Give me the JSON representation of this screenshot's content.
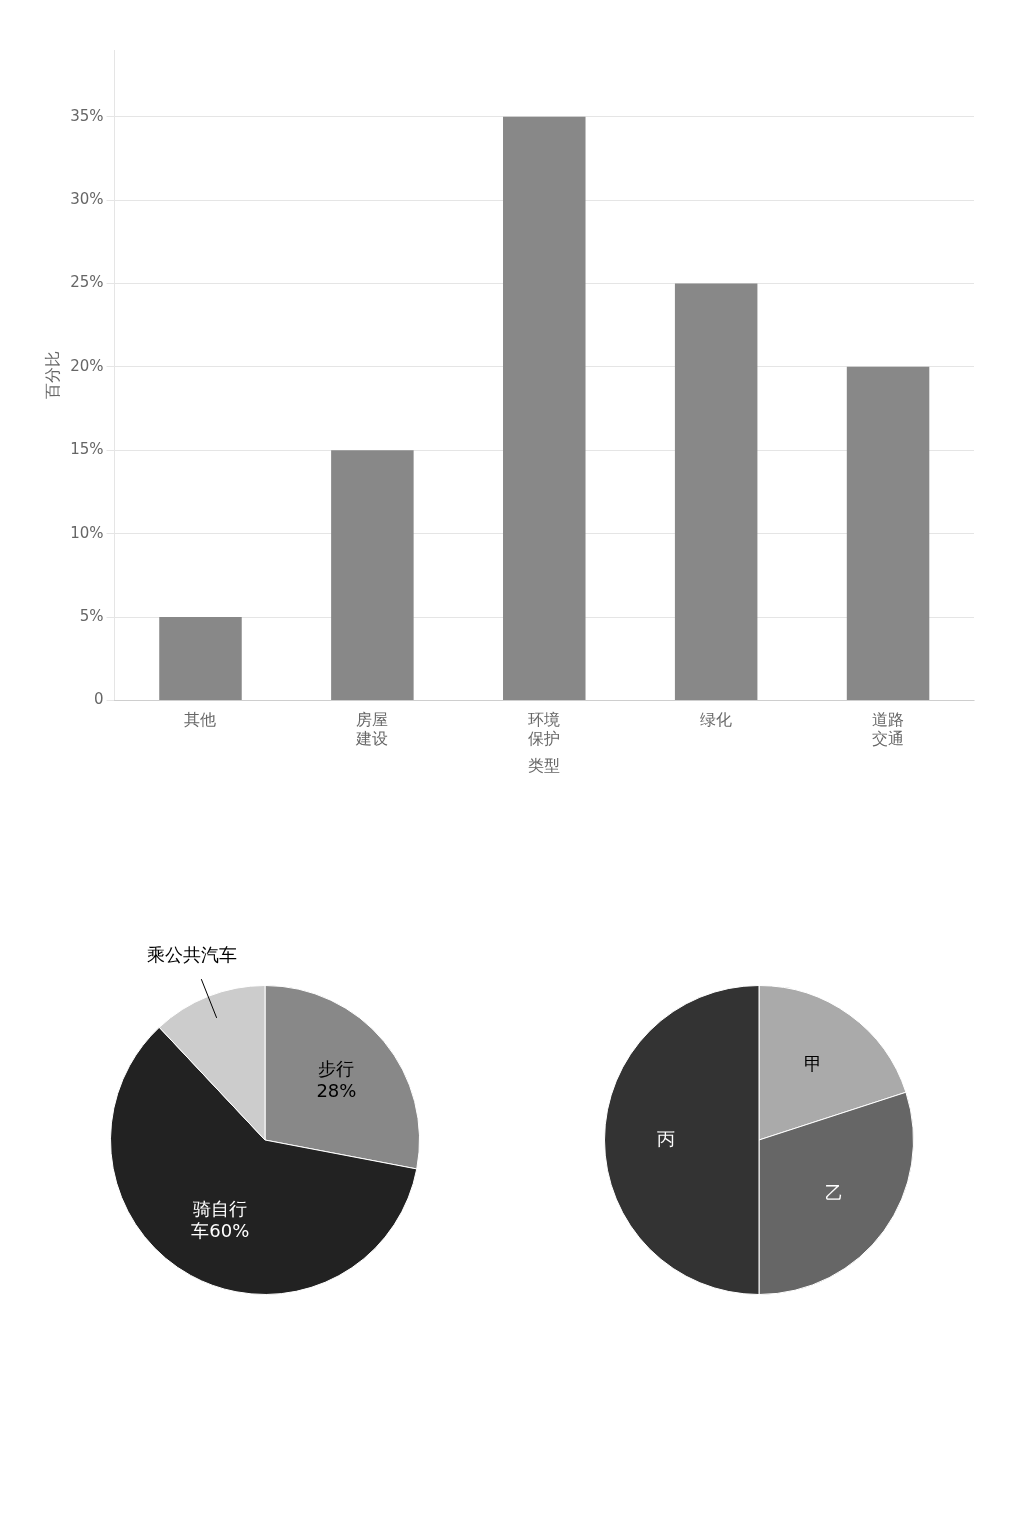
{
  "chart_data": [
    {
      "type": "bar",
      "categories": [
        "其他",
        "房屋\n建设",
        "环境\n保护",
        "绿化",
        "道路\n交通"
      ],
      "values": [
        5,
        15,
        35,
        25,
        20
      ],
      "color": "#888888",
      "y_label": "百分比",
      "x_label": "类型",
      "ylim": [
        0,
        39
      ],
      "yticks": [
        0,
        {
          "value": 5,
          "label": "5%"
        },
        {
          "value": 10,
          "label": "10%"
        },
        {
          "value": 15,
          "label": "15%"
        },
        {
          "value": 20,
          "label": "20%"
        },
        {
          "value": 25,
          "label": "25%"
        },
        {
          "value": 30,
          "label": "30%"
        },
        {
          "value": 35,
          "label": "35%"
        }
      ],
      "grid": true
    },
    {
      "type": "pie",
      "values": [
        28,
        60,
        12
      ],
      "colors": [
        "#888888",
        "#222222",
        "#cccccc"
      ],
      "value_labels": [
        "步行\n28%",
        "骑自行\n车60%",
        "乘公共汽车"
      ],
      "data_labels": true
    },
    {
      "type": "pie",
      "categories": [
        "甲",
        "乙",
        "丙"
      ],
      "values": [
        20,
        30,
        50
      ],
      "colors": [
        "#aaaaaa",
        "#666666",
        "#333333"
      ]
    }
  ]
}
